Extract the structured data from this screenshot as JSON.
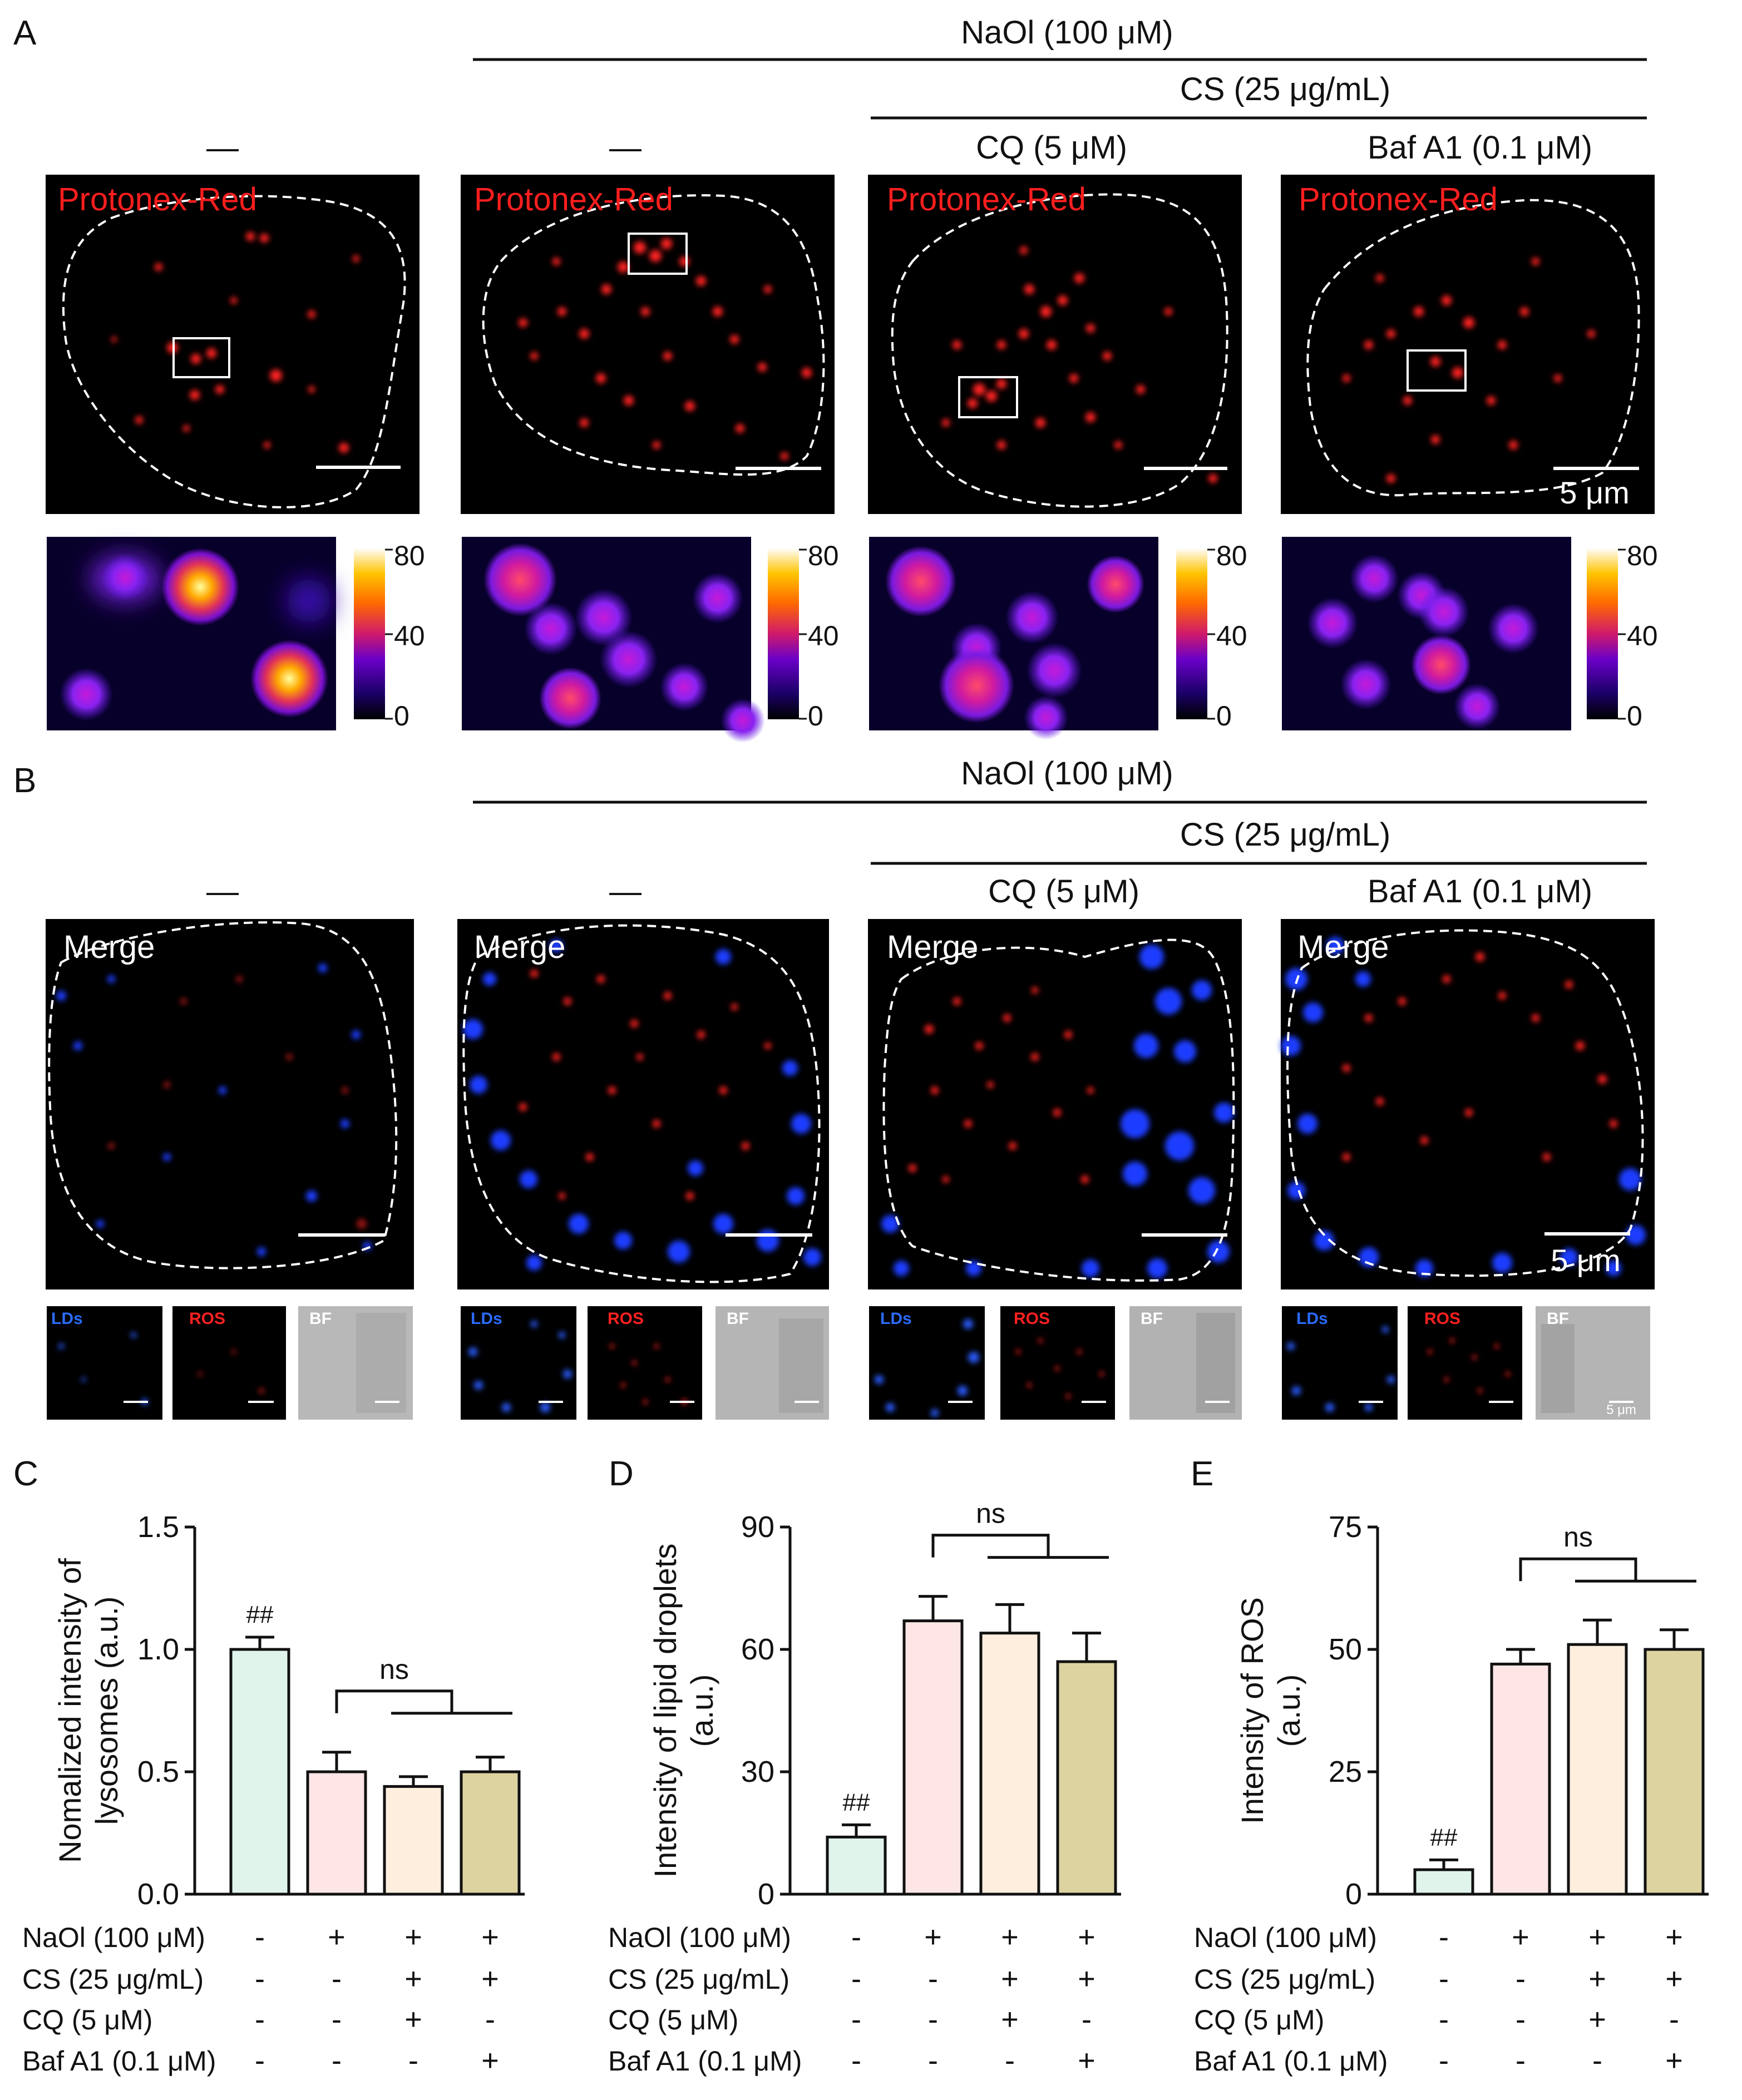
{
  "panel_letters": {
    "a": "A",
    "b": "B",
    "c": "C",
    "d": "D",
    "e": "E"
  },
  "header": {
    "naol": "NaOl (100 μM)",
    "cs": "CS (25 μg/mL)",
    "dash": "—",
    "cq": "CQ (5 μM)",
    "baf": "Baf A1 (0.1 μM)"
  },
  "panel_a": {
    "stain_label": "Protonex-Red",
    "scale_label": "5 μm",
    "colorbar_ticks": [
      "80",
      "40",
      "0"
    ]
  },
  "panel_b": {
    "merge_label": "Merge",
    "scale_label": "5 μm",
    "small_labels": [
      "LDs",
      "ROS",
      "BF"
    ],
    "small_scale_label": "5 μm"
  },
  "conditions": {
    "row_labels": [
      "NaOl (100 μM)",
      "CS (25 μg/mL)",
      "CQ (5 μM)",
      "Baf A1 (0.1 μM)"
    ],
    "signs": [
      [
        "-",
        "+",
        "+",
        "+"
      ],
      [
        "-",
        "-",
        "+",
        "+"
      ],
      [
        "-",
        "-",
        "+",
        "-"
      ],
      [
        "-",
        "-",
        "-",
        "+"
      ]
    ]
  },
  "colors": {
    "bars": [
      "#e1f4ec",
      "#fde6e5",
      "#fdeede",
      "#ddd3a1"
    ],
    "stain_red": "#ff1e1e",
    "ld_blue": "#2a5bff"
  },
  "chart_data": [
    {
      "type": "bar",
      "panel": "C",
      "ylabel": "Nomalized intensity of lysosomes (a.u.)",
      "ylabel_lines": [
        "Nomalized intensity of",
        "lysosomes (a.u.)"
      ],
      "ylim": [
        0,
        1.5
      ],
      "yticks": [
        "0.0",
        "0.5",
        "1.0",
        "1.5"
      ],
      "values": [
        1.0,
        0.5,
        0.44,
        0.5
      ],
      "errors": [
        0.05,
        0.08,
        0.04,
        0.06
      ],
      "annotations": [
        "##",
        "ns"
      ]
    },
    {
      "type": "bar",
      "panel": "D",
      "ylabel": "Intensity of lipid droplets (a.u.)",
      "ylabel_lines": [
        "Intensity of lipid droplets",
        "(a.u.)"
      ],
      "ylim": [
        0,
        90
      ],
      "yticks": [
        "0",
        "30",
        "60",
        "90"
      ],
      "values": [
        14,
        67,
        64,
        57
      ],
      "errors": [
        3,
        6,
        7,
        7
      ],
      "annotations": [
        "##",
        "ns"
      ]
    },
    {
      "type": "bar",
      "panel": "E",
      "ylabel": "Intensity of ROS (a.u.)",
      "ylabel_lines": [
        "Intensity of ROS",
        "(a.u.)"
      ],
      "ylim": [
        0,
        75
      ],
      "yticks": [
        "0",
        "25",
        "50",
        "75"
      ],
      "values": [
        5,
        47,
        51,
        50
      ],
      "errors": [
        2,
        3,
        5,
        4
      ],
      "annotations": [
        "##",
        "ns"
      ]
    }
  ]
}
